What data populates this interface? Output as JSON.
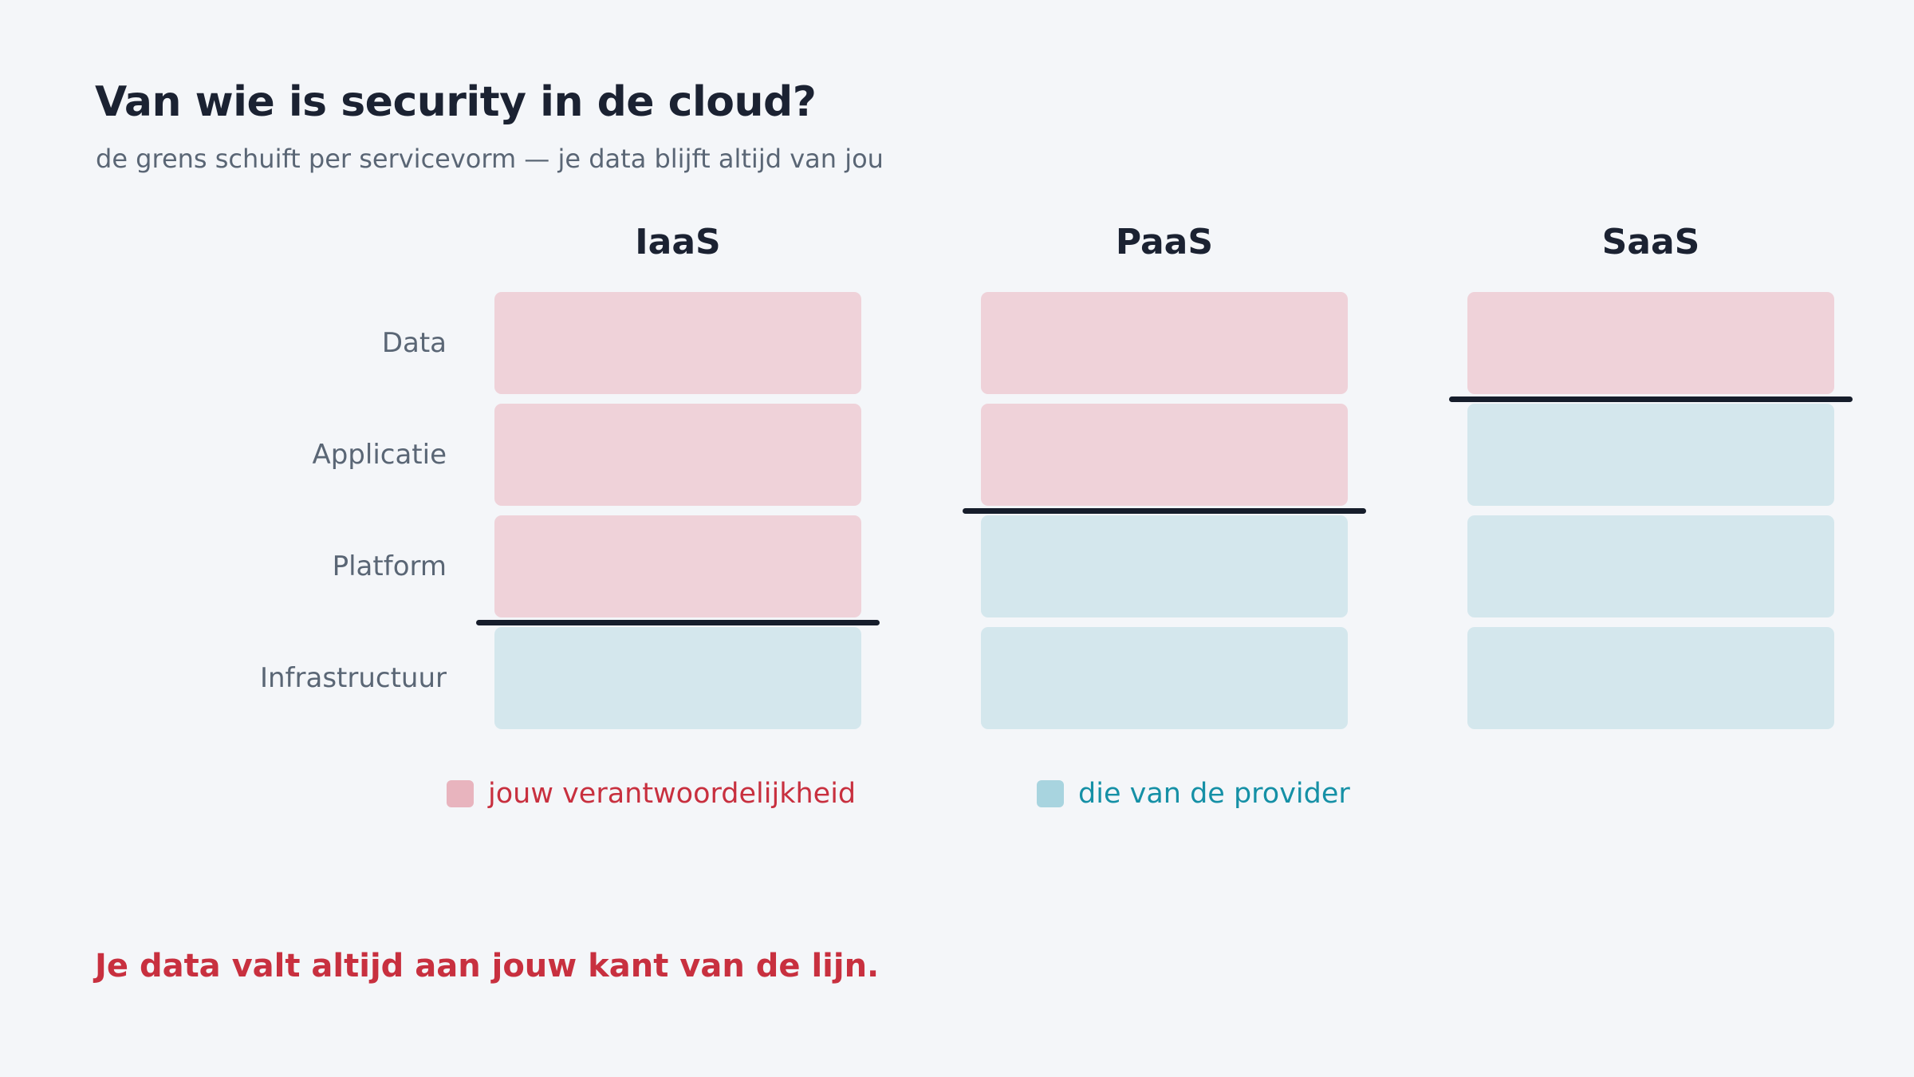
{
  "title": "Van wie is security in de cloud?",
  "subtitle": "de grens schuift per servicevorm — je data blijft altijd van jou",
  "layers": [
    "Data",
    "Applicatie",
    "Platform",
    "Infrastructuur"
  ],
  "models": [
    {
      "name": "IaaS",
      "customer_layers": 3
    },
    {
      "name": "PaaS",
      "customer_layers": 2
    },
    {
      "name": "SaaS",
      "customer_layers": 1
    }
  ],
  "legend": {
    "customer": {
      "label": "jouw verantwoordelijkheid",
      "color": "#e8b4be",
      "text_color": "#c8303f"
    },
    "provider": {
      "label": "die van de provider",
      "color": "#a8d4df",
      "text_color": "#1590a6"
    }
  },
  "footer": "Je data valt altijd aan jouw kant van de lijn."
}
